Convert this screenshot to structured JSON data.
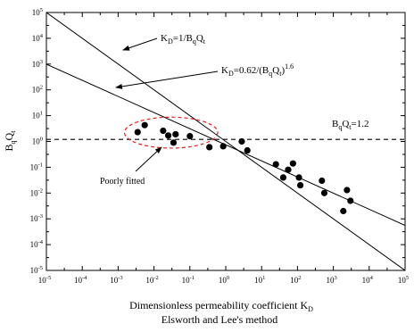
{
  "chart_data": {
    "type": "scatter",
    "xlabel": "Dimensionless permeability coefficient K",
    "xlabel_sub": "D",
    "subtitle": "Elsworth and Lee's method",
    "ylabel_main": "B",
    "ylabel_sub1": "q",
    "ylabel_mid": "Q",
    "ylabel_sub2": "t",
    "x_scale": "log",
    "y_scale": "log",
    "xlim": [
      1e-05,
      100000.0
    ],
    "ylim": [
      1e-05,
      100000.0
    ],
    "x_ticks": [
      {
        "v": 1e-05,
        "base": "10",
        "exp": "-5"
      },
      {
        "v": 0.0001,
        "base": "10",
        "exp": "-4"
      },
      {
        "v": 0.001,
        "base": "10",
        "exp": "-3"
      },
      {
        "v": 0.01,
        "base": "10",
        "exp": "-2"
      },
      {
        "v": 0.1,
        "base": "10",
        "exp": "-1"
      },
      {
        "v": 1.0,
        "base": "10",
        "exp": "0"
      },
      {
        "v": 10.0,
        "base": "10",
        "exp": "1"
      },
      {
        "v": 100.0,
        "base": "10",
        "exp": "2"
      },
      {
        "v": 1000.0,
        "base": "10",
        "exp": "3"
      },
      {
        "v": 10000.0,
        "base": "10",
        "exp": "4"
      },
      {
        "v": 100000.0,
        "base": "10",
        "exp": "5"
      }
    ],
    "y_ticks": [
      {
        "v": 1e-05,
        "base": "10",
        "exp": "-5"
      },
      {
        "v": 0.0001,
        "base": "10",
        "exp": "-4"
      },
      {
        "v": 0.001,
        "base": "10",
        "exp": "-3"
      },
      {
        "v": 0.01,
        "base": "10",
        "exp": "-2"
      },
      {
        "v": 0.1,
        "base": "10",
        "exp": "-1"
      },
      {
        "v": 1.0,
        "base": "10",
        "exp": "0"
      },
      {
        "v": 10.0,
        "base": "10",
        "exp": "1"
      },
      {
        "v": 100.0,
        "base": "10",
        "exp": "2"
      },
      {
        "v": 1000.0,
        "base": "10",
        "exp": "3"
      },
      {
        "v": 10000.0,
        "base": "10",
        "exp": "4"
      },
      {
        "v": 100000.0,
        "base": "10",
        "exp": "5"
      }
    ],
    "lines": [
      {
        "formula": "K_D = 1/(B_q Q_t)",
        "coef": 1,
        "power": 1
      },
      {
        "formula": "K_D = 0.62/(B_q Q_t)^1.6",
        "coef": 0.62,
        "power": 1.6
      }
    ],
    "hline": {
      "y": 1.2
    },
    "points": [
      {
        "x": 0.0035,
        "y": 2.3
      },
      {
        "x": 0.0055,
        "y": 4.3
      },
      {
        "x": 0.018,
        "y": 2.6
      },
      {
        "x": 0.025,
        "y": 1.7
      },
      {
        "x": 0.035,
        "y": 0.9
      },
      {
        "x": 0.04,
        "y": 1.9
      },
      {
        "x": 0.1,
        "y": 1.6
      },
      {
        "x": 0.35,
        "y": 0.6
      },
      {
        "x": 0.85,
        "y": 0.65
      },
      {
        "x": 2.8,
        "y": 1.0
      },
      {
        "x": 4.0,
        "y": 0.45
      },
      {
        "x": 25,
        "y": 0.13
      },
      {
        "x": 40,
        "y": 0.04
      },
      {
        "x": 55,
        "y": 0.08
      },
      {
        "x": 75,
        "y": 0.14
      },
      {
        "x": 110,
        "y": 0.04
      },
      {
        "x": 120,
        "y": 0.02
      },
      {
        "x": 480,
        "y": 0.03
      },
      {
        "x": 560,
        "y": 0.01
      },
      {
        "x": 1900,
        "y": 0.002
      },
      {
        "x": 2400,
        "y": 0.013
      },
      {
        "x": 3000,
        "y": 0.005
      }
    ],
    "ellipse": {
      "center_x": 0.03,
      "center_y": 2.2,
      "span_x_decades": 1.3,
      "span_y_decades": 0.6
    },
    "annotations": {
      "line1": {
        "main": "K",
        "sub": "D",
        "rest": "=1/B",
        "sub2": "q",
        "rest2": "Q",
        "sub3": "t"
      },
      "line2": {
        "main": "K",
        "sub": "D",
        "rest": "=0.62/(B",
        "sub2": "q",
        "rest2": "Q",
        "sub3": "t",
        "rest3": ")",
        "sup": "1.6"
      },
      "hline": {
        "main": "B",
        "sub": "q",
        "rest": "Q",
        "sub2": "t",
        "rest2": "=1.2"
      },
      "poor": "Poorly fitted"
    }
  }
}
